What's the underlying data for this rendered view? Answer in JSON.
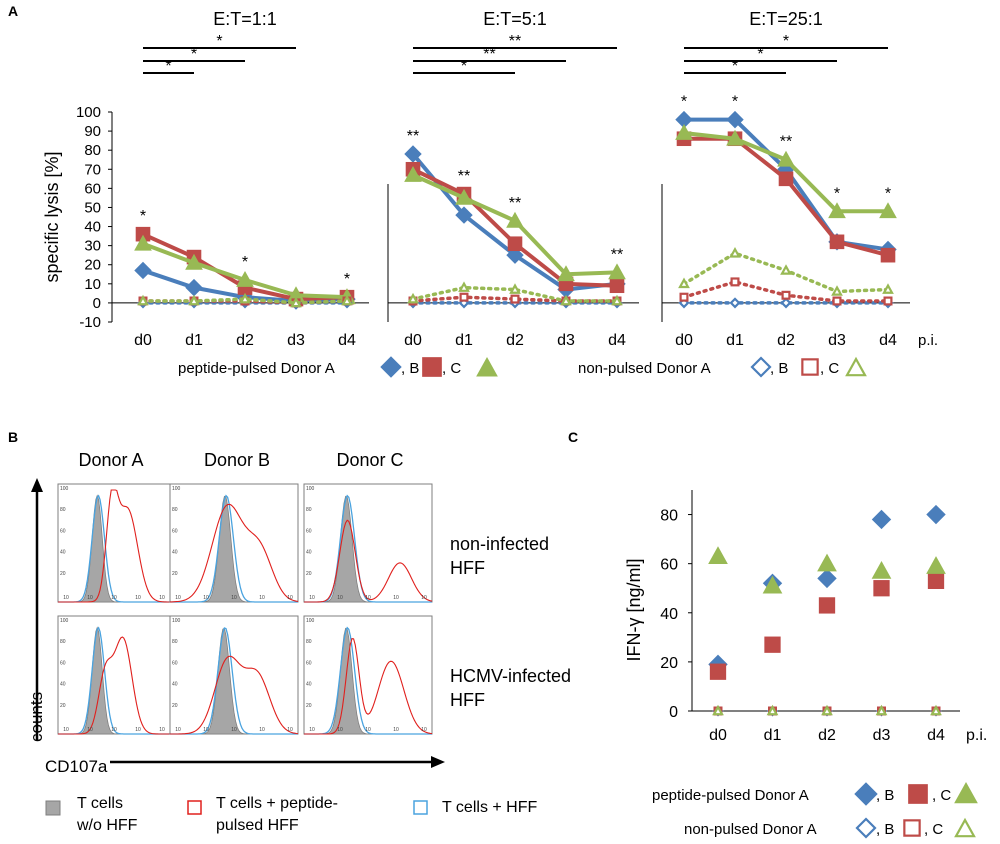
{
  "panel_letters": {
    "a": "A",
    "b": "B",
    "c": "C"
  },
  "colors": {
    "donor_a": "#4a7ebb",
    "donor_b": "#be4b48",
    "donor_c": "#98b954",
    "hist_grey": "#a6a6a6",
    "hist_red": "#e0201d",
    "hist_blue": "#4aa3df"
  },
  "chart_data": [
    {
      "type": "line",
      "title": "E:T=1:1",
      "ylabel": "specific lysis [%]",
      "ylim": [
        -10,
        100
      ],
      "yticks": [
        "-10",
        "0",
        "10",
        "20",
        "30",
        "40",
        "50",
        "60",
        "70",
        "80",
        "90",
        "100"
      ],
      "categories": [
        "d0",
        "d1",
        "d2",
        "d3",
        "d4"
      ],
      "series": [
        {
          "name": "peptide-pulsed Donor A",
          "marker": "diamond",
          "filled": true,
          "values": [
            17,
            8,
            3,
            1,
            2
          ]
        },
        {
          "name": "peptide-pulsed Donor B",
          "marker": "square",
          "filled": true,
          "values": [
            36,
            24,
            8,
            2,
            3
          ]
        },
        {
          "name": "peptide-pulsed Donor C",
          "marker": "triangle",
          "filled": true,
          "values": [
            31,
            21,
            12,
            4,
            3
          ]
        },
        {
          "name": "non-pulsed Donor A",
          "marker": "diamond",
          "filled": false,
          "values": [
            0,
            0,
            0,
            0,
            0
          ]
        },
        {
          "name": "non-pulsed Donor B",
          "marker": "square",
          "filled": false,
          "values": [
            1,
            1,
            1,
            0,
            1
          ]
        },
        {
          "name": "non-pulsed Donor C",
          "marker": "triangle",
          "filled": false,
          "values": [
            1,
            1,
            2,
            0,
            1
          ]
        }
      ],
      "point_stars": [
        "*",
        "",
        "*",
        "",
        "*"
      ],
      "brackets": [
        {
          "from": "d0",
          "to": "d3",
          "label": "*"
        },
        {
          "from": "d0",
          "to": "d2",
          "label": "*"
        },
        {
          "from": "d0",
          "to": "d1",
          "label": "*"
        }
      ]
    },
    {
      "type": "line",
      "title": "E:T=5:1",
      "categories": [
        "d0",
        "d1",
        "d2",
        "d3",
        "d4"
      ],
      "series": [
        {
          "name": "peptide-pulsed Donor A",
          "marker": "diamond",
          "filled": true,
          "values": [
            78,
            46,
            25,
            7,
            10
          ]
        },
        {
          "name": "peptide-pulsed Donor B",
          "marker": "square",
          "filled": true,
          "values": [
            70,
            57,
            31,
            10,
            9
          ]
        },
        {
          "name": "peptide-pulsed Donor C",
          "marker": "triangle",
          "filled": true,
          "values": [
            67,
            55,
            43,
            15,
            16
          ]
        },
        {
          "name": "non-pulsed Donor A",
          "marker": "diamond",
          "filled": false,
          "values": [
            0,
            0,
            0,
            0,
            0
          ]
        },
        {
          "name": "non-pulsed Donor B",
          "marker": "square",
          "filled": false,
          "values": [
            1,
            3,
            2,
            1,
            1
          ]
        },
        {
          "name": "non-pulsed Donor C",
          "marker": "triangle",
          "filled": false,
          "values": [
            2,
            8,
            7,
            1,
            1
          ]
        }
      ],
      "point_stars": [
        "**",
        "**",
        "**",
        "",
        "**"
      ],
      "brackets": [
        {
          "from": "d0",
          "to": "d4",
          "label": "**"
        },
        {
          "from": "d0",
          "to": "d3",
          "label": "**"
        },
        {
          "from": "d0",
          "to": "d2",
          "label": "*"
        }
      ]
    },
    {
      "type": "line",
      "title": "E:T=25:1",
      "categories": [
        "d0",
        "d1",
        "d2",
        "d3",
        "d4"
      ],
      "series": [
        {
          "name": "peptide-pulsed Donor A",
          "marker": "diamond",
          "filled": true,
          "values": [
            96,
            96,
            70,
            32,
            28
          ]
        },
        {
          "name": "peptide-pulsed Donor B",
          "marker": "square",
          "filled": true,
          "values": [
            86,
            86,
            65,
            32,
            25
          ]
        },
        {
          "name": "peptide-pulsed Donor C",
          "marker": "triangle",
          "filled": true,
          "values": [
            89,
            86,
            75,
            48,
            48
          ]
        },
        {
          "name": "non-pulsed Donor A",
          "marker": "diamond",
          "filled": false,
          "values": [
            0,
            0,
            0,
            0,
            0
          ]
        },
        {
          "name": "non-pulsed Donor B",
          "marker": "square",
          "filled": false,
          "values": [
            3,
            11,
            4,
            1,
            1
          ]
        },
        {
          "name": "non-pulsed Donor C",
          "marker": "triangle",
          "filled": false,
          "values": [
            10,
            26,
            17,
            6,
            7
          ]
        }
      ],
      "point_stars": [
        "*",
        "*",
        "**",
        "*",
        "*"
      ],
      "brackets": [
        {
          "from": "d0",
          "to": "d4",
          "label": "*"
        },
        {
          "from": "d0",
          "to": "d3",
          "label": "*"
        },
        {
          "from": "d0",
          "to": "d2",
          "label": "*"
        }
      ]
    },
    {
      "type": "scatter",
      "ylabel": "IFN-γ [ng/ml]",
      "ylim": [
        0,
        90
      ],
      "yticks": [
        "0",
        "20",
        "40",
        "60",
        "80"
      ],
      "categories": [
        "d0",
        "d1",
        "d2",
        "d3",
        "d4"
      ],
      "series": [
        {
          "name": "peptide-pulsed Donor A",
          "marker": "diamond",
          "filled": true,
          "values": [
            19,
            52,
            54,
            78,
            80
          ]
        },
        {
          "name": "peptide-pulsed Donor B",
          "marker": "square",
          "filled": true,
          "values": [
            16,
            27,
            43,
            50,
            53
          ]
        },
        {
          "name": "peptide-pulsed Donor C",
          "marker": "triangle",
          "filled": true,
          "values": [
            63,
            51,
            60,
            57,
            59
          ]
        },
        {
          "name": "non-pulsed Donor A",
          "marker": "diamond",
          "filled": false,
          "values": [
            0,
            0,
            0,
            0,
            0
          ]
        },
        {
          "name": "non-pulsed Donor B",
          "marker": "square",
          "filled": false,
          "values": [
            0,
            0,
            0,
            0,
            0
          ]
        },
        {
          "name": "non-pulsed Donor C",
          "marker": "triangle",
          "filled": false,
          "values": [
            0,
            0,
            0,
            0,
            0
          ]
        }
      ]
    }
  ],
  "panel_a": {
    "pi_label": "p.i.",
    "legend_pulsed": "peptide-pulsed Donor A",
    "legend_nonpulsed": "non-pulsed Donor A",
    "sep_b": ", B",
    "sep_c": ", C"
  },
  "panel_b": {
    "donors": [
      "Donor A",
      "Donor B",
      "Donor C"
    ],
    "row_labels": [
      [
        "non-infected",
        "HFF"
      ],
      [
        "HCMV-infected",
        "HFF"
      ]
    ],
    "y_axis": "counts",
    "x_axis": "CD107a",
    "x_ticks": [
      "10",
      "10",
      "10",
      "10",
      "10"
    ],
    "y_ticks": [
      "100",
      "80",
      "60",
      "40",
      "20"
    ],
    "legend": [
      {
        "line1": "T cells",
        "line2": "w/o HFF"
      },
      {
        "line1": "T cells + peptide-",
        "line2": "pulsed HFF"
      },
      {
        "line1": "T cells + HFF",
        "line2": ""
      }
    ]
  },
  "panel_c": {
    "pi_label": "p.i.",
    "legend_pulsed": "peptide-pulsed Donor A",
    "legend_nonpulsed": "non-pulsed Donor A",
    "sep_b": ", B",
    "sep_c": ", C"
  }
}
